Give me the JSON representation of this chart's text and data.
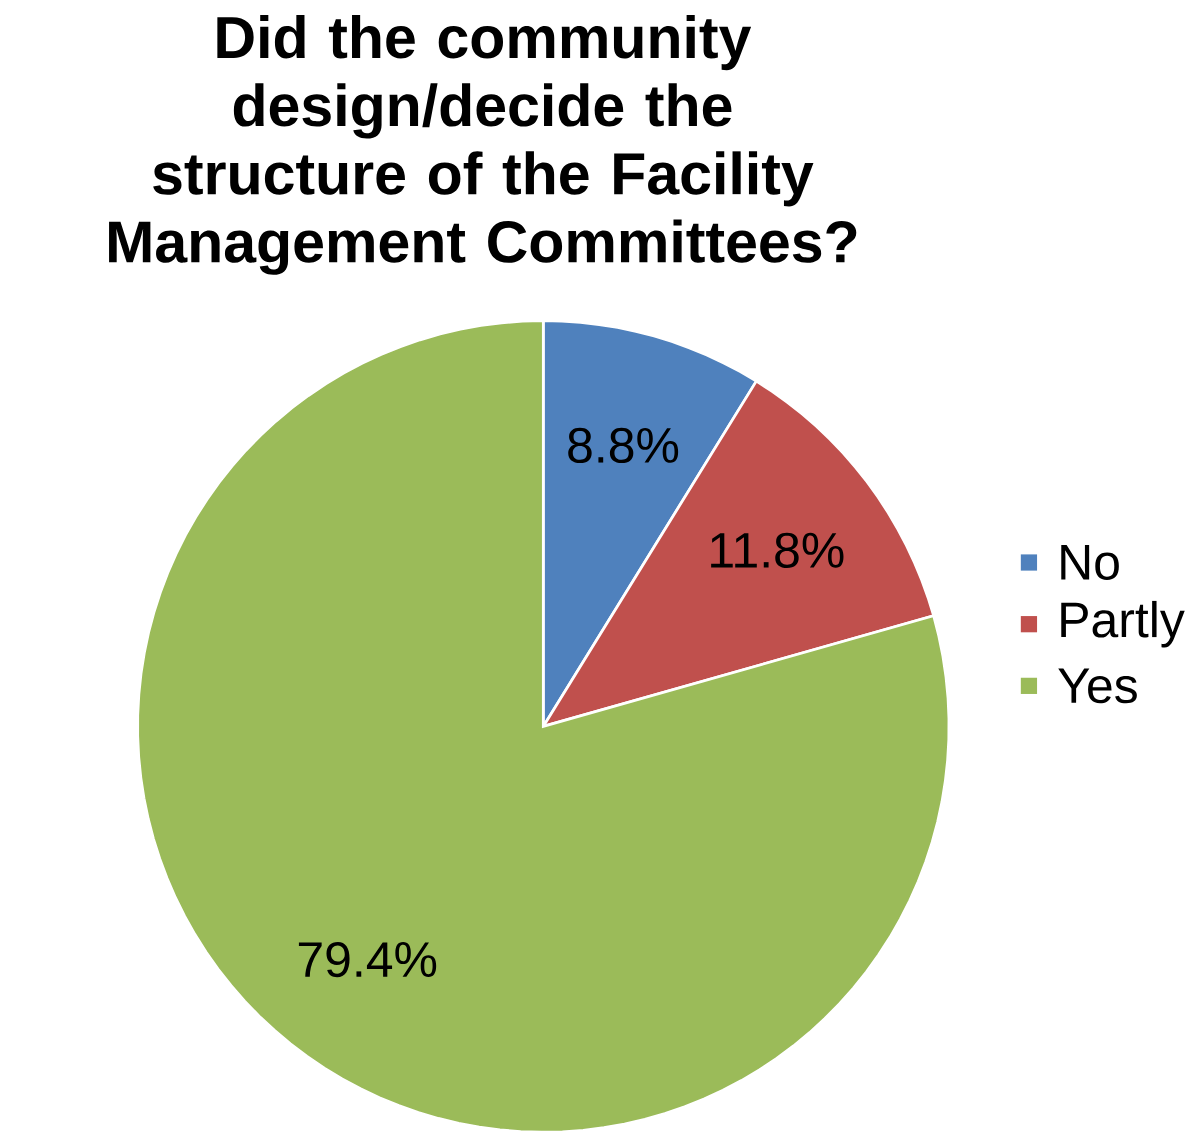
{
  "chart_data": {
    "type": "pie",
    "title": "Did the community design/decide the structure of the Facility Management Committees?",
    "categories": [
      "No",
      "Partly",
      "Yes"
    ],
    "values": [
      8.8,
      11.8,
      79.4
    ],
    "value_labels": [
      "8.8%",
      "11.8%",
      "79.4%"
    ],
    "colors": [
      "#4f81bd",
      "#c0504d",
      "#9bbb59"
    ],
    "legend": "right"
  }
}
